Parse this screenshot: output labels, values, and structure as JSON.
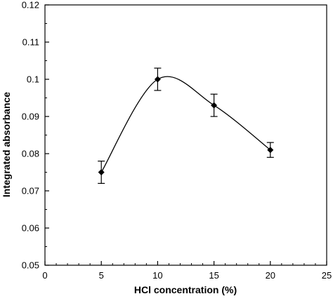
{
  "chart_data": {
    "type": "line",
    "xlabel": "HCl concentration (%)",
    "ylabel": "Integrated absorbance",
    "xlim": [
      0,
      25
    ],
    "ylim": [
      0.05,
      0.12
    ],
    "x_ticks": [
      "0",
      "5",
      "10",
      "15",
      "20",
      "25"
    ],
    "y_ticks": [
      "0.05",
      "0.06",
      "0.07",
      "0.08",
      "0.09",
      "0.1",
      "0.11",
      "0.12"
    ],
    "series": [
      {
        "x": [
          5,
          10,
          15,
          20
        ],
        "y": [
          0.075,
          0.1,
          0.093,
          0.081
        ],
        "error": [
          0.003,
          0.003,
          0.003,
          0.002
        ],
        "marker": "diamond",
        "color": "#000000",
        "smooth": true
      }
    ],
    "grid": false,
    "legend": "none"
  }
}
